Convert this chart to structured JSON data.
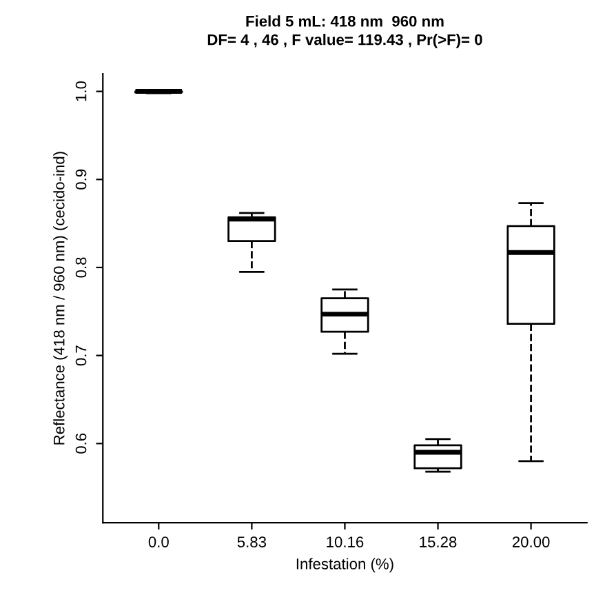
{
  "chart_data": {
    "type": "box",
    "title": "Field 5 mL: 418 nm  960 nm",
    "subtitle": "DF= 4 , 46 , F value= 119.43 , Pr(>F)= 0",
    "xlabel": "Infestation (%)",
    "ylabel": "Reflectance (418 nm / 960 nm) (cecido-ind)",
    "categories": [
      "0.0",
      "5.83",
      "10.16",
      "15.28",
      "20.00"
    ],
    "boxes": [
      {
        "low": 0.998,
        "q1": 0.999,
        "median": 1.0,
        "q3": 1.0,
        "high": 1.0
      },
      {
        "low": 0.795,
        "q1": 0.83,
        "median": 0.855,
        "q3": 0.857,
        "high": 0.862
      },
      {
        "low": 0.702,
        "q1": 0.727,
        "median": 0.747,
        "q3": 0.765,
        "high": 0.775
      },
      {
        "low": 0.568,
        "q1": 0.572,
        "median": 0.59,
        "q3": 0.598,
        "high": 0.605
      },
      {
        "low": 0.58,
        "q1": 0.736,
        "median": 0.817,
        "q3": 0.847,
        "high": 0.873
      }
    ],
    "ylim": [
      0.51,
      1.02
    ],
    "yticks": [
      0.6,
      0.7,
      0.8,
      0.9,
      {
        "value": 1,
        "label": "1.0"
      }
    ],
    "grid": false
  }
}
